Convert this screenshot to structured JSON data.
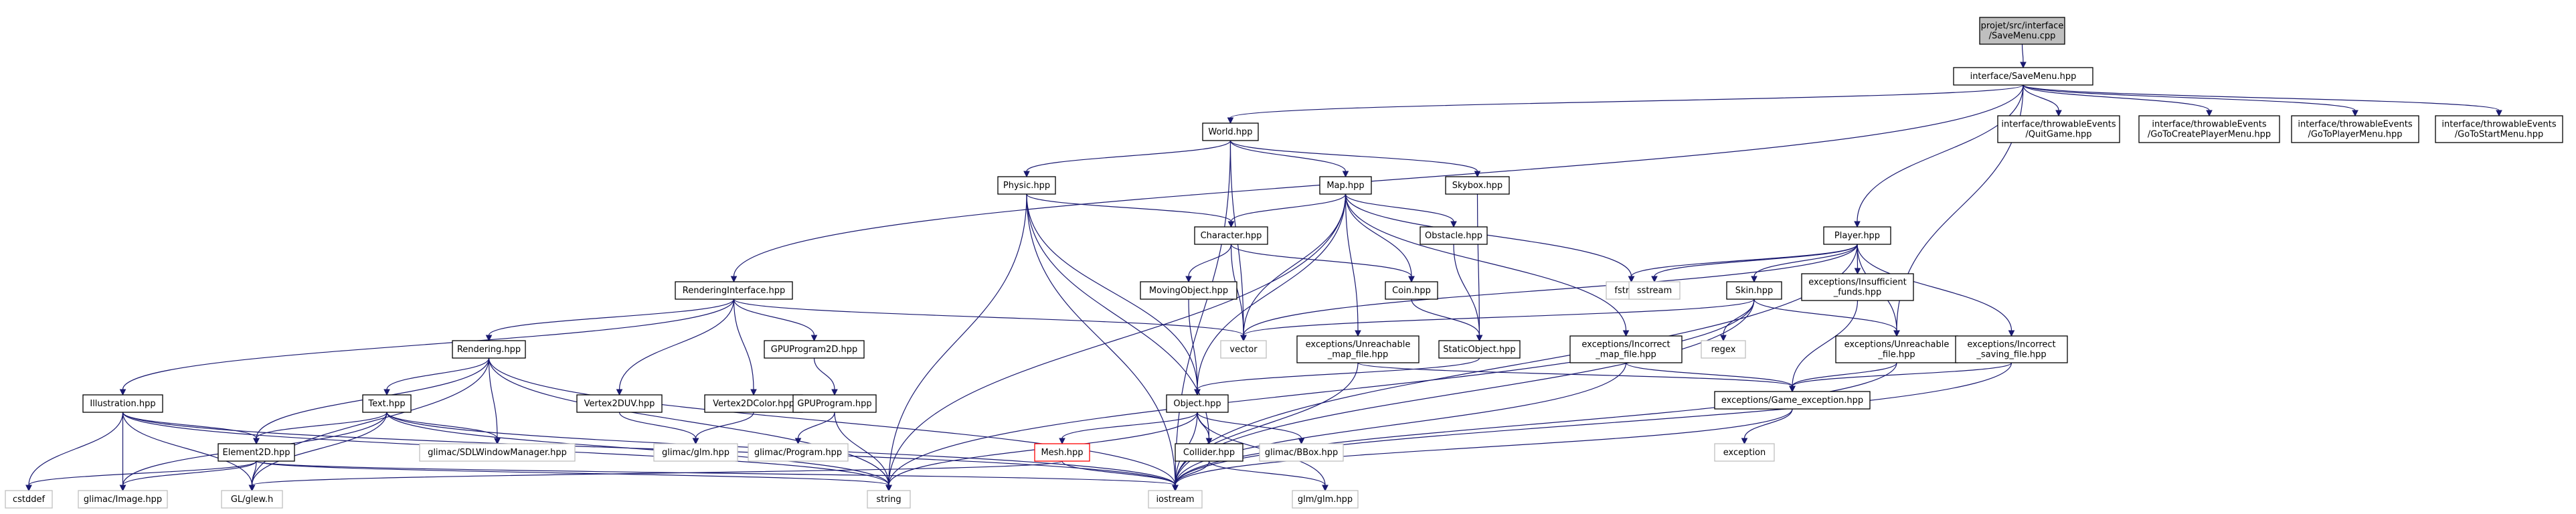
{
  "colors": {
    "edge": "#191970",
    "node_border": "#000000",
    "missing_border": "#bfbfbf",
    "root_fill": "#bfbfbf",
    "error_border": "#ff0000",
    "node_fill": "#ffffff"
  },
  "nodes": [
    {
      "id": "root",
      "lines": [
        "projet/src/interface",
        "/SaveMenu.cpp"
      ],
      "style": "root"
    },
    {
      "id": "savemenu",
      "lines": [
        "interface/SaveMenu.hpp"
      ],
      "style": "normal"
    },
    {
      "id": "quitgame",
      "lines": [
        "interface/throwableEvents",
        "/QuitGame.hpp"
      ],
      "style": "normal"
    },
    {
      "id": "gotocreate",
      "lines": [
        "interface/throwableEvents",
        "/GoToCreatePlayerMenu.hpp"
      ],
      "style": "normal"
    },
    {
      "id": "gotoplayer",
      "lines": [
        "interface/throwableEvents",
        "/GoToPlayerMenu.hpp"
      ],
      "style": "normal"
    },
    {
      "id": "gotostart",
      "lines": [
        "interface/throwableEvents",
        "/GoToStartMenu.hpp"
      ],
      "style": "normal"
    },
    {
      "id": "world",
      "lines": [
        "World.hpp"
      ],
      "style": "normal"
    },
    {
      "id": "physic",
      "lines": [
        "Physic.hpp"
      ],
      "style": "normal"
    },
    {
      "id": "map",
      "lines": [
        "Map.hpp"
      ],
      "style": "normal"
    },
    {
      "id": "skybox",
      "lines": [
        "Skybox.hpp"
      ],
      "style": "normal"
    },
    {
      "id": "character",
      "lines": [
        "Character.hpp"
      ],
      "style": "normal"
    },
    {
      "id": "obstacle",
      "lines": [
        "Obstacle.hpp"
      ],
      "style": "normal"
    },
    {
      "id": "movingobject",
      "lines": [
        "MovingObject.hpp"
      ],
      "style": "normal"
    },
    {
      "id": "coin",
      "lines": [
        "Coin.hpp"
      ],
      "style": "normal"
    },
    {
      "id": "staticobject",
      "lines": [
        "StaticObject.hpp"
      ],
      "style": "normal"
    },
    {
      "id": "player",
      "lines": [
        "Player.hpp"
      ],
      "style": "normal"
    },
    {
      "id": "skin",
      "lines": [
        "Skin.hpp"
      ],
      "style": "normal"
    },
    {
      "id": "insufficient",
      "lines": [
        "exceptions/Insufficient",
        "_funds.hpp"
      ],
      "style": "normal"
    },
    {
      "id": "exunreach_map",
      "lines": [
        "exceptions/Unreachable",
        "_map_file.hpp"
      ],
      "style": "normal"
    },
    {
      "id": "exincorrect_map",
      "lines": [
        "exceptions/Incorrect",
        "_map_file.hpp"
      ],
      "style": "normal"
    },
    {
      "id": "exunreach_file",
      "lines": [
        "exceptions/Unreachable",
        "_file.hpp"
      ],
      "style": "normal"
    },
    {
      "id": "exincorrect_saving",
      "lines": [
        "exceptions/Incorrect",
        "_saving_file.hpp"
      ],
      "style": "normal"
    },
    {
      "id": "gameexception",
      "lines": [
        "exceptions/Game_exception.hpp"
      ],
      "style": "normal"
    },
    {
      "id": "renderinginterface",
      "lines": [
        "RenderingInterface.hpp"
      ],
      "style": "normal"
    },
    {
      "id": "rendering",
      "lines": [
        "Rendering.hpp"
      ],
      "style": "normal"
    },
    {
      "id": "illustration",
      "lines": [
        "Illustration.hpp"
      ],
      "style": "normal"
    },
    {
      "id": "text",
      "lines": [
        "Text.hpp"
      ],
      "style": "normal"
    },
    {
      "id": "element2d",
      "lines": [
        "Element2D.hpp"
      ],
      "style": "normal"
    },
    {
      "id": "vertex2duv",
      "lines": [
        "Vertex2DUV.hpp"
      ],
      "style": "normal"
    },
    {
      "id": "vertex2dcolor",
      "lines": [
        "Vertex2DColor.hpp"
      ],
      "style": "normal"
    },
    {
      "id": "gpuprogram2d",
      "lines": [
        "GPUProgram2D.hpp"
      ],
      "style": "normal"
    },
    {
      "id": "gpuprogram",
      "lines": [
        "GPUProgram.hpp"
      ],
      "style": "normal"
    },
    {
      "id": "object",
      "lines": [
        "Object.hpp"
      ],
      "style": "normal"
    },
    {
      "id": "mesh",
      "lines": [
        "Mesh.hpp"
      ],
      "style": "error"
    },
    {
      "id": "collider",
      "lines": [
        "Collider.hpp"
      ],
      "style": "normal"
    },
    {
      "id": "glimacbbox",
      "lines": [
        "glimac/BBox.hpp"
      ],
      "style": "missing"
    },
    {
      "id": "glimacglm",
      "lines": [
        "glimac/glm.hpp"
      ],
      "style": "missing"
    },
    {
      "id": "glimacprogram",
      "lines": [
        "glimac/Program.hpp"
      ],
      "style": "missing"
    },
    {
      "id": "glimacsdl",
      "lines": [
        "glimac/SDLWindowManager.hpp"
      ],
      "style": "missing"
    },
    {
      "id": "glimacimage",
      "lines": [
        "glimac/Image.hpp"
      ],
      "style": "missing"
    },
    {
      "id": "glewh",
      "lines": [
        "GL/glew.h"
      ],
      "style": "missing"
    },
    {
      "id": "cstddef",
      "lines": [
        "cstddef"
      ],
      "style": "missing"
    },
    {
      "id": "string",
      "lines": [
        "string"
      ],
      "style": "missing"
    },
    {
      "id": "iostream",
      "lines": [
        "iostream"
      ],
      "style": "missing"
    },
    {
      "id": "vector",
      "lines": [
        "vector"
      ],
      "style": "missing"
    },
    {
      "id": "fstream",
      "lines": [
        "fstream"
      ],
      "style": "missing"
    },
    {
      "id": "sstream",
      "lines": [
        "sstream"
      ],
      "style": "missing"
    },
    {
      "id": "regex",
      "lines": [
        "regex"
      ],
      "style": "missing"
    },
    {
      "id": "exception",
      "lines": [
        "exception"
      ],
      "style": "missing"
    },
    {
      "id": "glmglm",
      "lines": [
        "glm/glm.hpp"
      ],
      "style": "missing"
    }
  ],
  "edges": [
    [
      "root",
      "savemenu"
    ],
    [
      "savemenu",
      "world"
    ],
    [
      "savemenu",
      "renderinginterface"
    ],
    [
      "savemenu",
      "player"
    ],
    [
      "savemenu",
      "exunreach_file"
    ],
    [
      "savemenu",
      "quitgame"
    ],
    [
      "savemenu",
      "gotocreate"
    ],
    [
      "savemenu",
      "gotoplayer"
    ],
    [
      "savemenu",
      "gotostart"
    ],
    [
      "world",
      "physic"
    ],
    [
      "world",
      "map"
    ],
    [
      "world",
      "skybox"
    ],
    [
      "world",
      "vector"
    ],
    [
      "world",
      "iostream"
    ],
    [
      "physic",
      "character"
    ],
    [
      "physic",
      "object"
    ],
    [
      "physic",
      "collider"
    ],
    [
      "physic",
      "string"
    ],
    [
      "physic",
      "iostream"
    ],
    [
      "map",
      "character"
    ],
    [
      "map",
      "obstacle"
    ],
    [
      "map",
      "coin"
    ],
    [
      "map",
      "object"
    ],
    [
      "map",
      "exunreach_map"
    ],
    [
      "map",
      "exincorrect_map"
    ],
    [
      "map",
      "vector"
    ],
    [
      "map",
      "string"
    ],
    [
      "map",
      "fstream"
    ],
    [
      "skybox",
      "staticobject"
    ],
    [
      "character",
      "movingobject"
    ],
    [
      "character",
      "coin"
    ],
    [
      "character",
      "vector"
    ],
    [
      "obstacle",
      "staticobject"
    ],
    [
      "coin",
      "staticobject"
    ],
    [
      "movingobject",
      "object"
    ],
    [
      "staticobject",
      "object"
    ],
    [
      "player",
      "skin"
    ],
    [
      "player",
      "insufficient"
    ],
    [
      "player",
      "exunreach_file"
    ],
    [
      "player",
      "exincorrect_saving"
    ],
    [
      "player",
      "vector"
    ],
    [
      "player",
      "fstream"
    ],
    [
      "player",
      "sstream"
    ],
    [
      "player",
      "iostream"
    ],
    [
      "skin",
      "vector"
    ],
    [
      "skin",
      "regex"
    ],
    [
      "skin",
      "exunreach_file"
    ],
    [
      "skin",
      "string"
    ],
    [
      "skin",
      "iostream"
    ],
    [
      "insufficient",
      "gameexception"
    ],
    [
      "exunreach_map",
      "gameexception"
    ],
    [
      "exunreach_map",
      "iostream"
    ],
    [
      "exincorrect_map",
      "gameexception"
    ],
    [
      "exincorrect_map",
      "iostream"
    ],
    [
      "exunreach_file",
      "gameexception"
    ],
    [
      "exunreach_file",
      "iostream"
    ],
    [
      "exincorrect_saving",
      "gameexception"
    ],
    [
      "exincorrect_saving",
      "iostream"
    ],
    [
      "gameexception",
      "exception"
    ],
    [
      "gameexception",
      "iostream"
    ],
    [
      "renderinginterface",
      "rendering"
    ],
    [
      "renderinginterface",
      "illustration"
    ],
    [
      "renderinginterface",
      "vertex2duv"
    ],
    [
      "renderinginterface",
      "vertex2dcolor"
    ],
    [
      "renderinginterface",
      "gpuprogram2d"
    ],
    [
      "renderinginterface",
      "vector"
    ],
    [
      "rendering",
      "text"
    ],
    [
      "rendering",
      "element2d"
    ],
    [
      "rendering",
      "glimacsdl"
    ],
    [
      "rendering",
      "glewh"
    ],
    [
      "rendering",
      "string"
    ],
    [
      "rendering",
      "iostream"
    ],
    [
      "illustration",
      "element2d"
    ],
    [
      "illustration",
      "glimacimage"
    ],
    [
      "illustration",
      "glewh"
    ],
    [
      "illustration",
      "cstddef"
    ],
    [
      "illustration",
      "string"
    ],
    [
      "illustration",
      "iostream"
    ],
    [
      "text",
      "element2d"
    ],
    [
      "text",
      "glimacsdl"
    ],
    [
      "text",
      "glimacimage"
    ],
    [
      "text",
      "glewh"
    ],
    [
      "text",
      "string"
    ],
    [
      "text",
      "iostream"
    ],
    [
      "element2d",
      "glimacimage"
    ],
    [
      "element2d",
      "glewh"
    ],
    [
      "element2d",
      "cstddef"
    ],
    [
      "element2d",
      "string"
    ],
    [
      "element2d",
      "iostream"
    ],
    [
      "vertex2duv",
      "glimacglm"
    ],
    [
      "vertex2dcolor",
      "glimacglm"
    ],
    [
      "gpuprogram2d",
      "gpuprogram"
    ],
    [
      "gpuprogram",
      "glimacprogram"
    ],
    [
      "gpuprogram",
      "string"
    ],
    [
      "object",
      "mesh"
    ],
    [
      "object",
      "collider"
    ],
    [
      "object",
      "glimacbbox"
    ],
    [
      "object",
      "glmglm"
    ],
    [
      "object",
      "string"
    ],
    [
      "object",
      "iostream"
    ],
    [
      "mesh",
      "glewh"
    ],
    [
      "mesh",
      "iostream"
    ],
    [
      "collider",
      "glmglm"
    ],
    [
      "collider",
      "iostream"
    ]
  ]
}
